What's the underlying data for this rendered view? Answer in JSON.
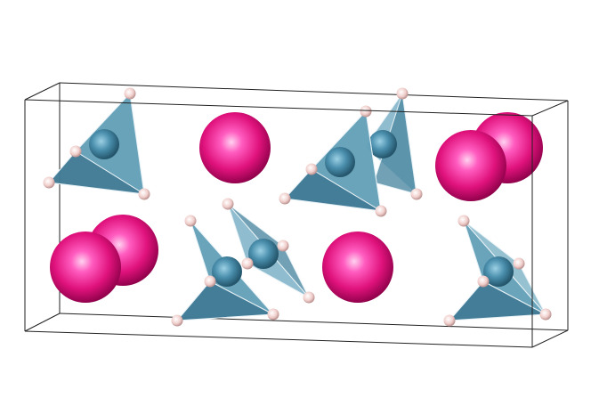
{
  "structure": {
    "cations": [
      {
        "id": "c1"
      },
      {
        "id": "c2"
      },
      {
        "id": "c3"
      },
      {
        "id": "c4"
      },
      {
        "id": "c5"
      },
      {
        "id": "c6"
      },
      {
        "id": "c7"
      }
    ],
    "tetrahedra": [
      {
        "id": "t1"
      },
      {
        "id": "t2"
      },
      {
        "id": "t3"
      },
      {
        "id": "t4"
      },
      {
        "id": "t5"
      },
      {
        "id": "t6"
      }
    ]
  },
  "colors": {
    "cation": "#e0157f",
    "cation_highlight": "#ff9fe0",
    "tetrahedron_face": "#5f9cb4",
    "tetrahedron_edge": "#e8f2f6",
    "central_atom": "#4a8fad",
    "vertex_atom": "#f3d6d4",
    "cell_edge": "#222222",
    "background": "#ffffff"
  }
}
